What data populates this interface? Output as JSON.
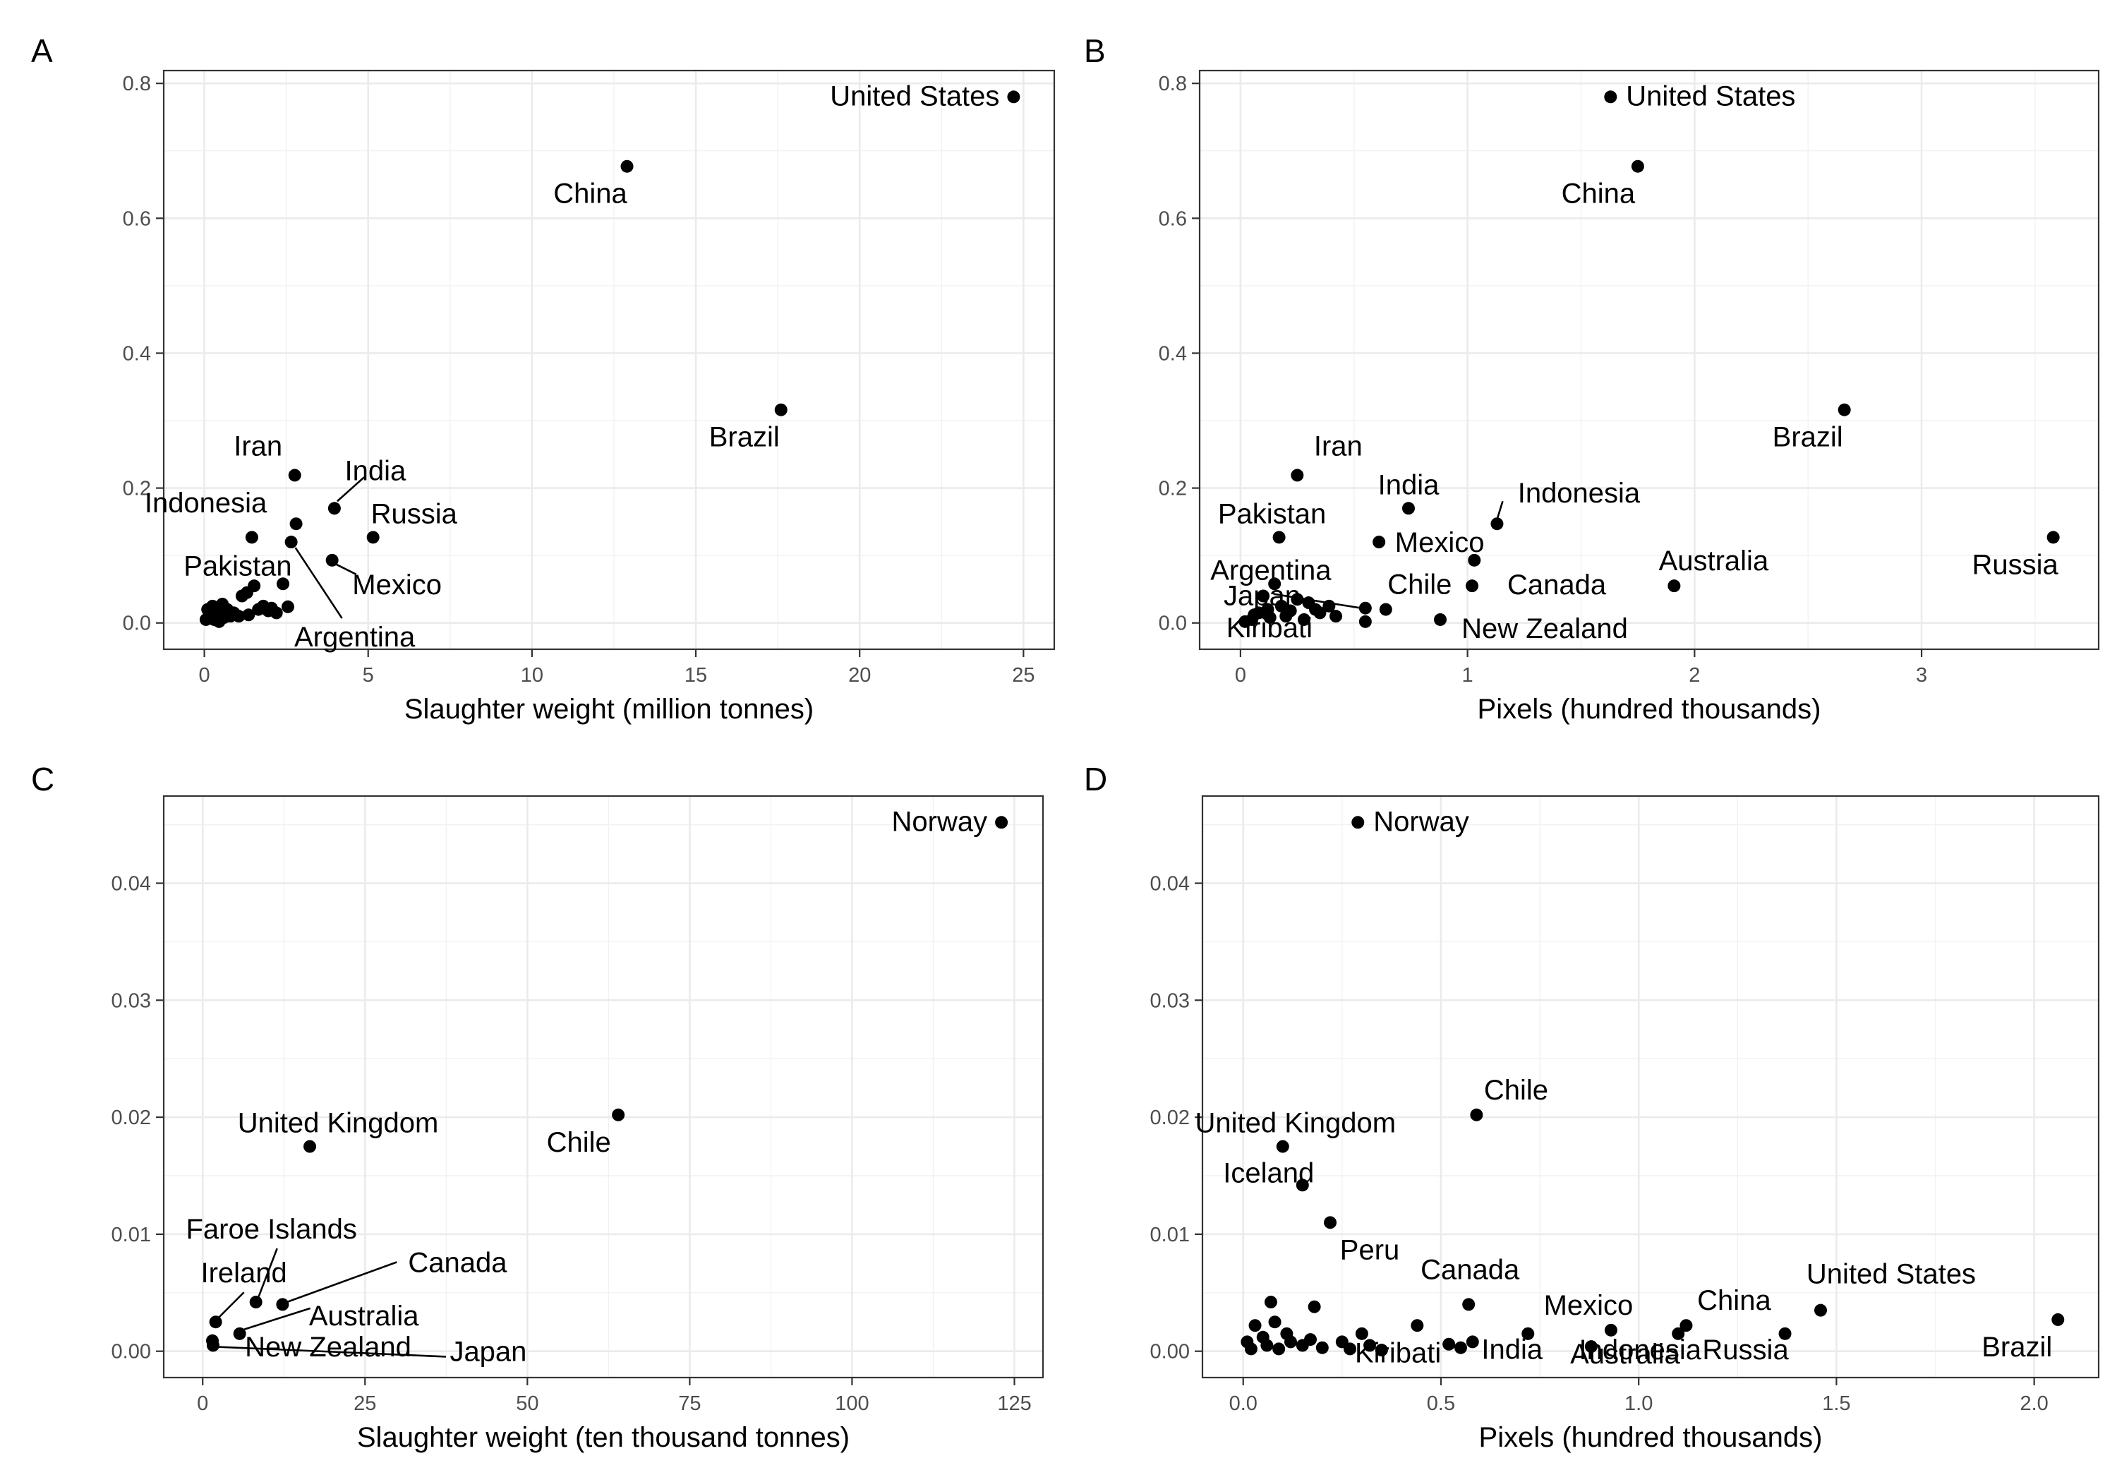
{
  "chart_data": [
    {
      "panel": "A",
      "type": "scatter",
      "title": "",
      "xlabel": "Slaughter weight (million tonnes)",
      "ylabel": "",
      "xlim": [
        -1.24,
        25.94
      ],
      "ylim": [
        -0.039,
        0.819
      ],
      "xticks": [
        0,
        5,
        10,
        15,
        20,
        25
      ],
      "xtick_labels": [
        "0",
        "5",
        "10",
        "15",
        "20",
        "25"
      ],
      "yticks": [
        0,
        0.2,
        0.4,
        0.6,
        0.8
      ],
      "ytick_labels": [
        "0.0",
        "0.2",
        "0.4",
        "0.6",
        "0.8"
      ],
      "grid": true,
      "points": [
        {
          "x": 24.7,
          "y": 0.78,
          "label": "United States"
        },
        {
          "x": 12.9,
          "y": 0.677,
          "label": "China"
        },
        {
          "x": 17.6,
          "y": 0.316,
          "label": "Brazil"
        },
        {
          "x": 2.76,
          "y": 0.219,
          "label": "Iran"
        },
        {
          "x": 3.97,
          "y": 0.17,
          "label": "India"
        },
        {
          "x": 2.8,
          "y": 0.147,
          "label": "Indonesia"
        },
        {
          "x": 5.15,
          "y": 0.127,
          "label": "Russia"
        },
        {
          "x": 3.9,
          "y": 0.093,
          "label": "Mexico"
        },
        {
          "x": 1.45,
          "y": 0.127,
          "label": "Pakistan"
        },
        {
          "x": 2.65,
          "y": 0.12,
          "label": "Argentina"
        },
        {
          "x": 2.4,
          "y": 0.058,
          "label": ""
        },
        {
          "x": 1.52,
          "y": 0.055,
          "label": ""
        },
        {
          "x": 1.3,
          "y": 0.045,
          "label": ""
        },
        {
          "x": 1.15,
          "y": 0.04,
          "label": ""
        },
        {
          "x": 0.55,
          "y": 0.028,
          "label": ""
        },
        {
          "x": 0.7,
          "y": 0.02,
          "label": ""
        },
        {
          "x": 0.25,
          "y": 0.025,
          "label": ""
        },
        {
          "x": 0.9,
          "y": 0.015,
          "label": ""
        },
        {
          "x": 1.8,
          "y": 0.025,
          "label": ""
        },
        {
          "x": 2.05,
          "y": 0.022,
          "label": ""
        },
        {
          "x": 2.55,
          "y": 0.024,
          "label": ""
        },
        {
          "x": 1.65,
          "y": 0.02,
          "label": ""
        },
        {
          "x": 1.35,
          "y": 0.012,
          "label": ""
        },
        {
          "x": 1.05,
          "y": 0.01,
          "label": ""
        },
        {
          "x": 0.4,
          "y": 0.015,
          "label": ""
        },
        {
          "x": 0.15,
          "y": 0.01,
          "label": ""
        },
        {
          "x": 0.05,
          "y": 0.005,
          "label": ""
        },
        {
          "x": 0.3,
          "y": 0.005,
          "label": ""
        },
        {
          "x": 0.6,
          "y": 0.008,
          "label": ""
        },
        {
          "x": 0.1,
          "y": 0.02,
          "label": ""
        },
        {
          "x": 2.2,
          "y": 0.015,
          "label": ""
        },
        {
          "x": 1.95,
          "y": 0.018,
          "label": ""
        },
        {
          "x": 0.8,
          "y": 0.01,
          "label": ""
        },
        {
          "x": 0.45,
          "y": 0.002,
          "label": ""
        }
      ]
    },
    {
      "panel": "B",
      "type": "scatter",
      "title": "",
      "xlabel": "Pixels (hundred thousands)",
      "ylabel": "",
      "xlim": [
        -0.18,
        3.78
      ],
      "ylim": [
        -0.039,
        0.819
      ],
      "xticks": [
        0,
        1,
        2,
        3
      ],
      "xtick_labels": [
        "0",
        "1",
        "2",
        "3"
      ],
      "yticks": [
        0,
        0.2,
        0.4,
        0.6,
        0.8
      ],
      "ytick_labels": [
        "0.0",
        "0.2",
        "0.4",
        "0.6",
        "0.8"
      ],
      "grid": true,
      "points": [
        {
          "x": 1.63,
          "y": 0.78,
          "label": "United States"
        },
        {
          "x": 1.75,
          "y": 0.677,
          "label": "China"
        },
        {
          "x": 2.66,
          "y": 0.316,
          "label": "Brazil"
        },
        {
          "x": 0.25,
          "y": 0.219,
          "label": "Iran"
        },
        {
          "x": 0.74,
          "y": 0.17,
          "label": "India"
        },
        {
          "x": 1.13,
          "y": 0.147,
          "label": "Indonesia"
        },
        {
          "x": 0.61,
          "y": 0.12,
          "label": "Mexico"
        },
        {
          "x": 0.17,
          "y": 0.127,
          "label": "Pakistan"
        },
        {
          "x": 3.58,
          "y": 0.127,
          "label": "Russia"
        },
        {
          "x": 1.91,
          "y": 0.055,
          "label": "Australia"
        },
        {
          "x": 1.03,
          "y": 0.093,
          "label": ""
        },
        {
          "x": 1.02,
          "y": 0.055,
          "label": "Canada"
        },
        {
          "x": 0.64,
          "y": 0.02,
          "label": "Chile"
        },
        {
          "x": 0.88,
          "y": 0.005,
          "label": "New Zealand"
        },
        {
          "x": 0.55,
          "y": 0.022,
          "label": "Argentina"
        },
        {
          "x": 0.15,
          "y": 0.058,
          "label": ""
        },
        {
          "x": 0.12,
          "y": 0.02,
          "label": "Japan"
        },
        {
          "x": 0.55,
          "y": 0.002,
          "label": "Kiribati"
        },
        {
          "x": 0.39,
          "y": 0.025,
          "label": ""
        },
        {
          "x": 0.3,
          "y": 0.03,
          "label": ""
        },
        {
          "x": 0.1,
          "y": 0.04,
          "label": ""
        },
        {
          "x": 0.25,
          "y": 0.035,
          "label": ""
        },
        {
          "x": 0.35,
          "y": 0.015,
          "label": ""
        },
        {
          "x": 0.42,
          "y": 0.01,
          "label": ""
        },
        {
          "x": 0.2,
          "y": 0.01,
          "label": ""
        },
        {
          "x": 0.05,
          "y": 0.005,
          "label": ""
        },
        {
          "x": 0.08,
          "y": 0.015,
          "label": ""
        },
        {
          "x": 0.02,
          "y": 0.002,
          "label": ""
        },
        {
          "x": 0.28,
          "y": 0.005,
          "label": ""
        },
        {
          "x": 0.18,
          "y": 0.025,
          "label": ""
        },
        {
          "x": 0.13,
          "y": 0.008,
          "label": ""
        },
        {
          "x": 0.06,
          "y": 0.012,
          "label": ""
        },
        {
          "x": 0.33,
          "y": 0.02,
          "label": ""
        },
        {
          "x": 0.22,
          "y": 0.018,
          "label": ""
        }
      ]
    },
    {
      "panel": "C",
      "type": "scatter",
      "title": "",
      "xlabel": "Slaughter weight (ten thousand tonnes)",
      "ylabel": "",
      "xlim": [
        -6.0,
        129.4
      ],
      "ylim": [
        -0.00225,
        0.04745
      ],
      "xticks": [
        0,
        25,
        50,
        75,
        100,
        125
      ],
      "xtick_labels": [
        "0",
        "25",
        "50",
        "75",
        "100",
        "125"
      ],
      "yticks": [
        0,
        0.01,
        0.02,
        0.03,
        0.04
      ],
      "ytick_labels": [
        "0.00",
        "0.01",
        "0.02",
        "0.03",
        "0.04"
      ],
      "grid": true,
      "points": [
        {
          "x": 123.0,
          "y": 0.0452,
          "label": "Norway"
        },
        {
          "x": 64.0,
          "y": 0.0202,
          "label": "Chile"
        },
        {
          "x": 16.5,
          "y": 0.0175,
          "label": "United Kingdom"
        },
        {
          "x": 8.2,
          "y": 0.0042,
          "label": "Faroe Islands"
        },
        {
          "x": 12.3,
          "y": 0.004,
          "label": "Canada"
        },
        {
          "x": 2.0,
          "y": 0.0025,
          "label": "Ireland"
        },
        {
          "x": 5.7,
          "y": 0.0015,
          "label": "Australia"
        },
        {
          "x": 1.5,
          "y": 0.0009,
          "label": "New Zealand"
        },
        {
          "x": 1.6,
          "y": 0.0005,
          "label": "Japan"
        }
      ]
    },
    {
      "panel": "D",
      "type": "scatter",
      "title": "",
      "xlabel": "Pixels (hundred thousands)",
      "ylabel": "",
      "xlim": [
        -0.103,
        2.163
      ],
      "ylim": [
        -0.00225,
        0.04745
      ],
      "xticks": [
        0,
        0.5,
        1.0,
        1.5,
        2.0
      ],
      "xtick_labels": [
        "0.0",
        "0.5",
        "1.0",
        "1.5",
        "2.0"
      ],
      "yticks": [
        0,
        0.01,
        0.02,
        0.03,
        0.04
      ],
      "ytick_labels": [
        "0.00",
        "0.01",
        "0.02",
        "0.03",
        "0.04"
      ],
      "grid": true,
      "points": [
        {
          "x": 0.29,
          "y": 0.0452,
          "label": "Norway"
        },
        {
          "x": 0.59,
          "y": 0.0202,
          "label": "Chile"
        },
        {
          "x": 0.1,
          "y": 0.0175,
          "label": "United Kingdom"
        },
        {
          "x": 0.15,
          "y": 0.0142,
          "label": "Iceland"
        },
        {
          "x": 0.22,
          "y": 0.011,
          "label": "Peru"
        },
        {
          "x": 0.57,
          "y": 0.004,
          "label": "Canada"
        },
        {
          "x": 0.93,
          "y": 0.0018,
          "label": "Mexico"
        },
        {
          "x": 1.12,
          "y": 0.0022,
          "label": "China"
        },
        {
          "x": 1.46,
          "y": 0.0035,
          "label": "United States"
        },
        {
          "x": 2.06,
          "y": 0.0027,
          "label": "Brazil"
        },
        {
          "x": 0.32,
          "y": 0.0005,
          "label": "Kiribati"
        },
        {
          "x": 0.58,
          "y": 0.0008,
          "label": "India"
        },
        {
          "x": 0.88,
          "y": 0.0004,
          "label": "Australia"
        },
        {
          "x": 1.1,
          "y": 0.0015,
          "label": "Indonesia"
        },
        {
          "x": 1.37,
          "y": 0.0015,
          "label": "Russia"
        },
        {
          "x": 0.07,
          "y": 0.0042,
          "label": ""
        },
        {
          "x": 0.18,
          "y": 0.0038,
          "label": ""
        },
        {
          "x": 0.08,
          "y": 0.0025,
          "label": ""
        },
        {
          "x": 0.44,
          "y": 0.0022,
          "label": ""
        },
        {
          "x": 0.72,
          "y": 0.0015,
          "label": ""
        },
        {
          "x": 0.3,
          "y": 0.0015,
          "label": ""
        },
        {
          "x": 0.25,
          "y": 0.0008,
          "label": ""
        },
        {
          "x": 0.52,
          "y": 0.0006,
          "label": ""
        },
        {
          "x": 0.55,
          "y": 0.0003,
          "label": ""
        },
        {
          "x": 0.03,
          "y": 0.0022,
          "label": ""
        },
        {
          "x": 0.05,
          "y": 0.0012,
          "label": ""
        },
        {
          "x": 0.12,
          "y": 0.0008,
          "label": ""
        },
        {
          "x": 0.15,
          "y": 0.0005,
          "label": ""
        },
        {
          "x": 0.02,
          "y": 0.0002,
          "label": ""
        },
        {
          "x": 0.09,
          "y": 0.0002,
          "label": ""
        },
        {
          "x": 0.2,
          "y": 0.0003,
          "label": ""
        },
        {
          "x": 0.27,
          "y": 0.0002,
          "label": ""
        },
        {
          "x": 0.35,
          "y": 0.0001,
          "label": ""
        },
        {
          "x": 0.11,
          "y": 0.0015,
          "label": ""
        },
        {
          "x": 0.06,
          "y": 0.0005,
          "label": ""
        },
        {
          "x": 0.17,
          "y": 0.001,
          "label": ""
        },
        {
          "x": 0.01,
          "y": 0.0008,
          "label": ""
        }
      ]
    }
  ]
}
